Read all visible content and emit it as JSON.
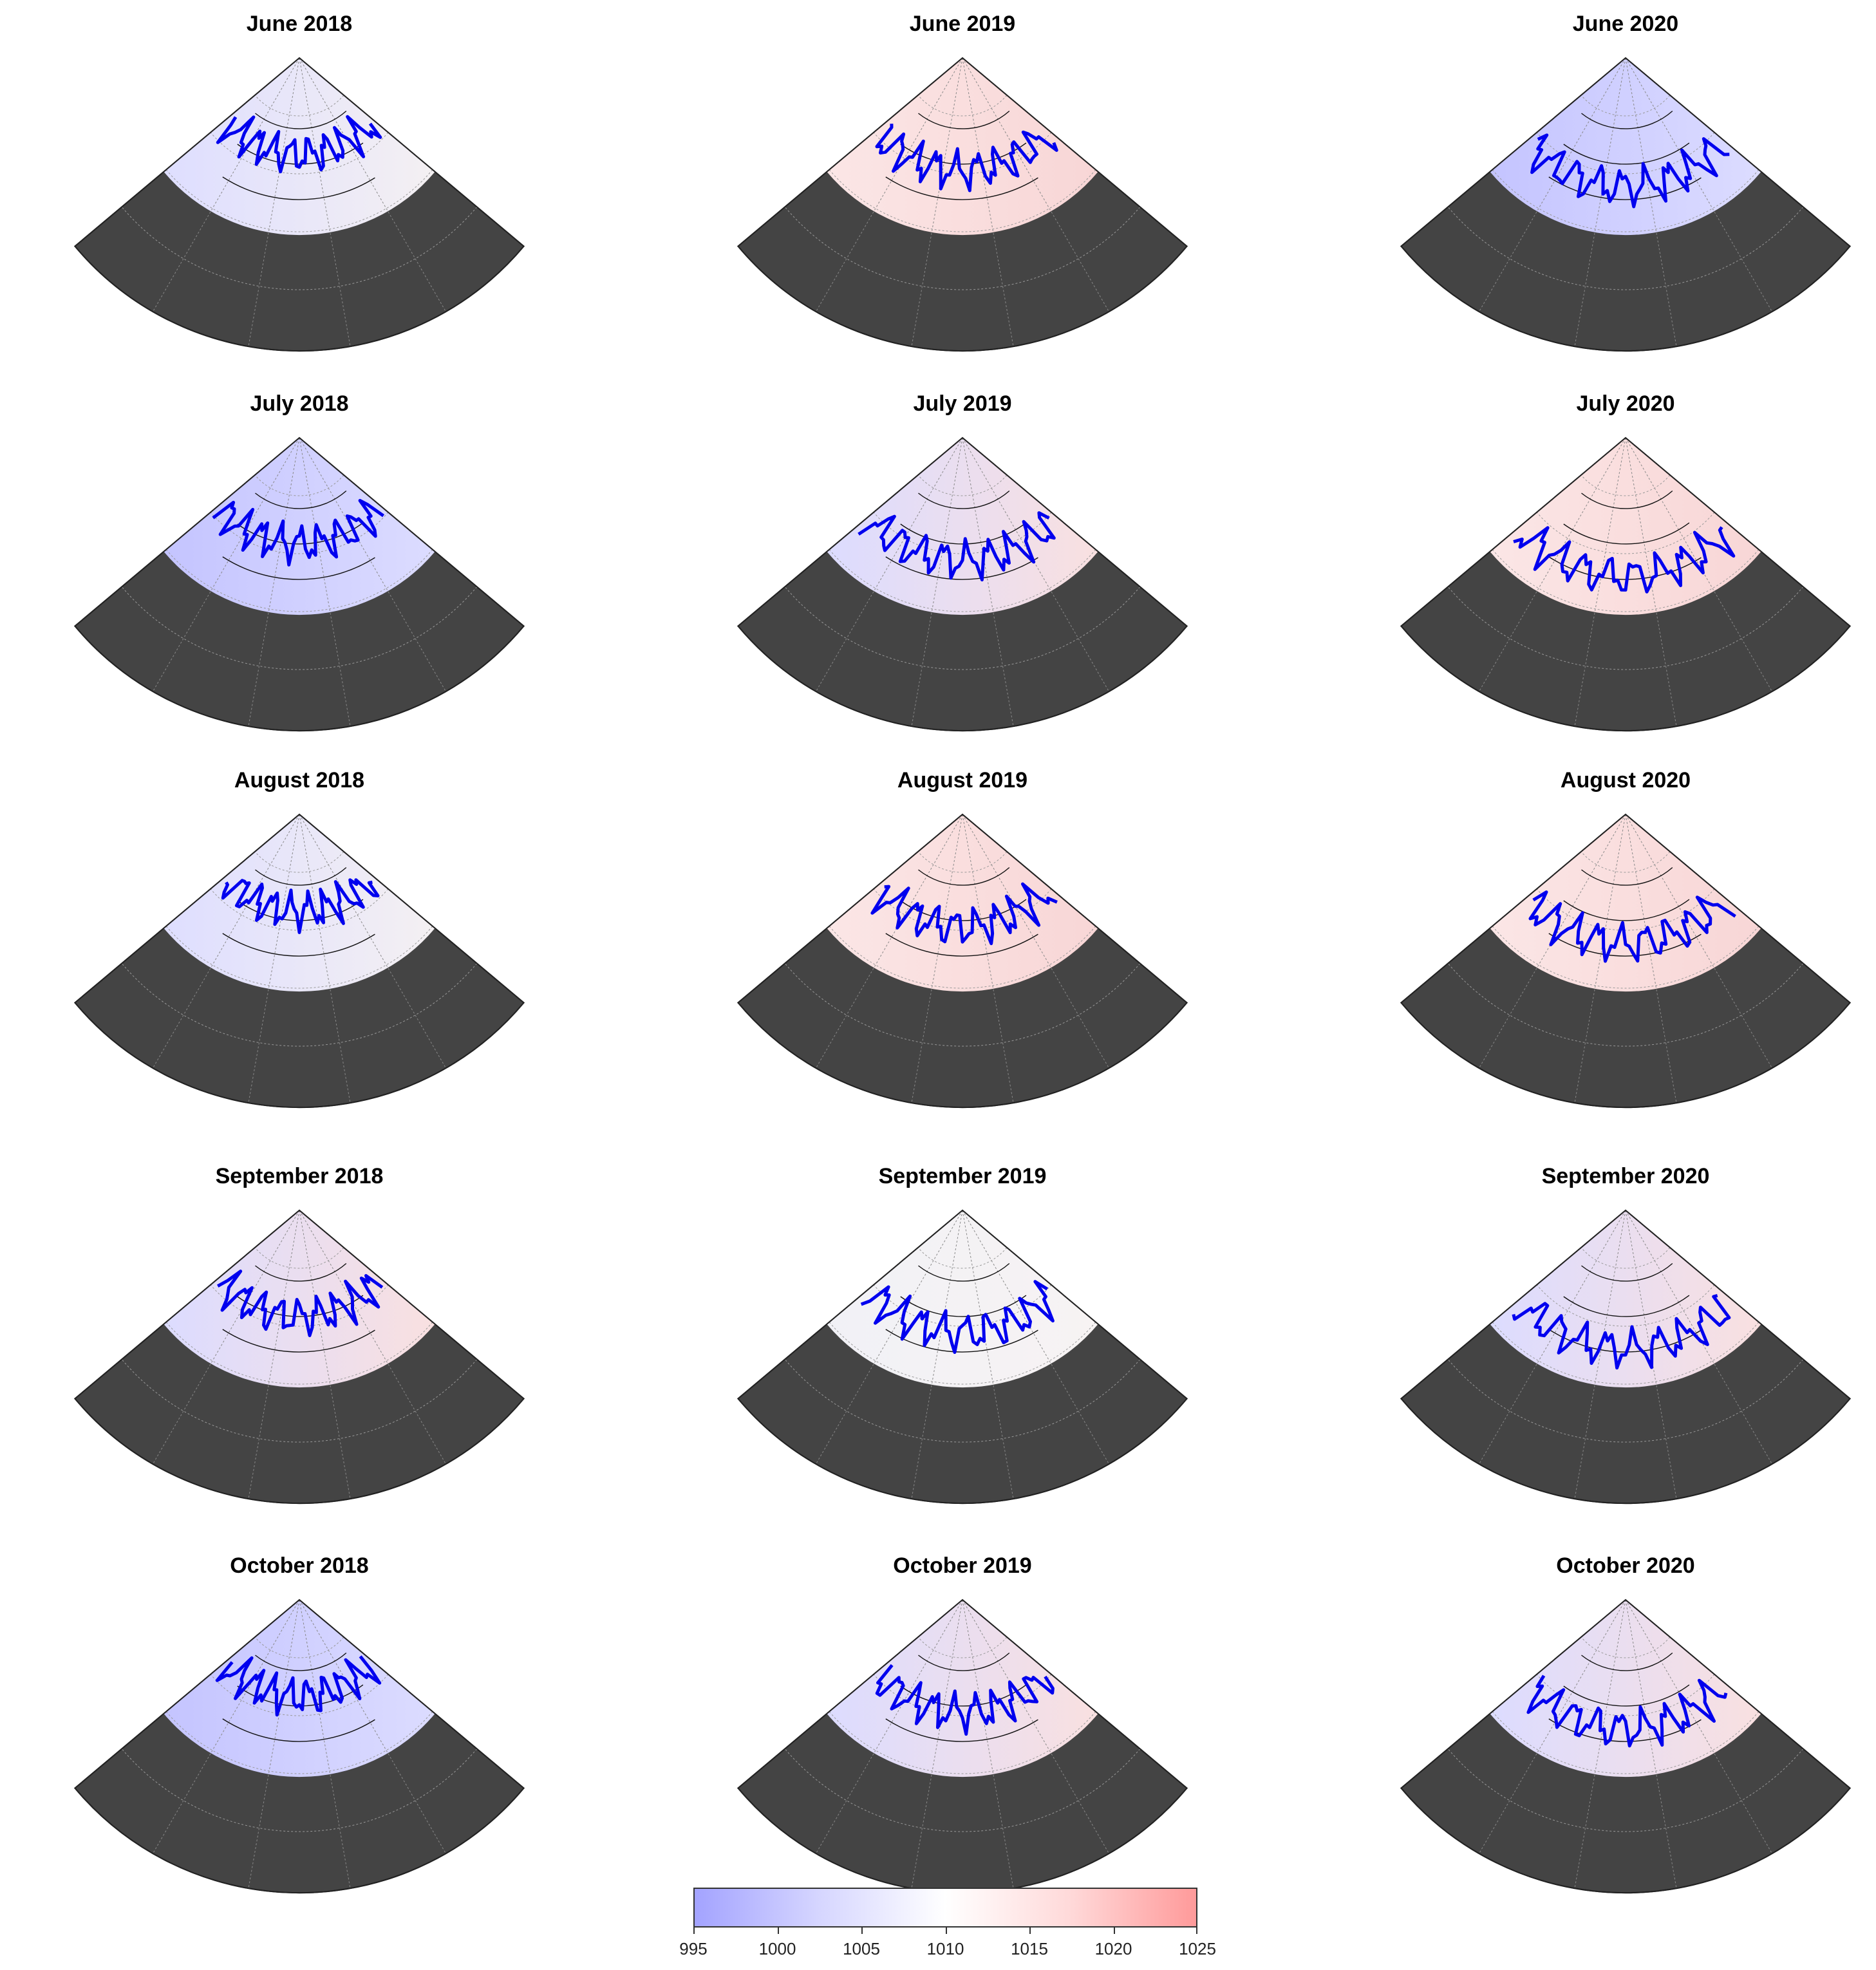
{
  "figure": {
    "panels": [
      {
        "title": "June 2018",
        "pressure_tint": "neutral-low",
        "land": "#444444",
        "ice_edge_color": "#0000ee"
      },
      {
        "title": "June 2019",
        "pressure_tint": "high",
        "land": "#444444",
        "ice_edge_color": "#0000ee"
      },
      {
        "title": "June 2020",
        "pressure_tint": "low",
        "land": "#444444",
        "ice_edge_color": "#0000ee"
      },
      {
        "title": "July 2018",
        "pressure_tint": "low",
        "land": "#444444",
        "ice_edge_color": "#0000ee"
      },
      {
        "title": "July 2019",
        "pressure_tint": "mixed",
        "land": "#444444",
        "ice_edge_color": "#0000ee"
      },
      {
        "title": "July 2020",
        "pressure_tint": "high",
        "land": "#444444",
        "ice_edge_color": "#0000ee"
      },
      {
        "title": "August 2018",
        "pressure_tint": "neutral-low",
        "land": "#444444",
        "ice_edge_color": "#0000ee"
      },
      {
        "title": "August 2019",
        "pressure_tint": "high",
        "land": "#444444",
        "ice_edge_color": "#0000ee"
      },
      {
        "title": "August 2020",
        "pressure_tint": "high",
        "land": "#444444",
        "ice_edge_color": "#0000ee"
      },
      {
        "title": "September 2018",
        "pressure_tint": "mixed",
        "land": "#444444",
        "ice_edge_color": "#0000ee"
      },
      {
        "title": "September 2019",
        "pressure_tint": "neutral",
        "land": "#444444",
        "ice_edge_color": "#0000ee"
      },
      {
        "title": "September 2020",
        "pressure_tint": "mixed",
        "land": "#444444",
        "ice_edge_color": "#0000ee"
      },
      {
        "title": "October 2018",
        "pressure_tint": "low",
        "land": "#444444",
        "ice_edge_color": "#0000ee"
      },
      {
        "title": "October 2019",
        "pressure_tint": "mixed",
        "land": "#444444",
        "ice_edge_color": "#0000ee"
      },
      {
        "title": "October 2020",
        "pressure_tint": "mixed",
        "land": "#444444",
        "ice_edge_color": "#0000ee"
      }
    ],
    "colorbar": {
      "ticks": [
        "995",
        "1000",
        "1005",
        "1010",
        "1015",
        "1020",
        "1025"
      ],
      "range": [
        995,
        1025
      ],
      "colors": {
        "low": "#a3a3ff",
        "mid": "#ffffff",
        "high": "#ff9a9a"
      }
    }
  }
}
